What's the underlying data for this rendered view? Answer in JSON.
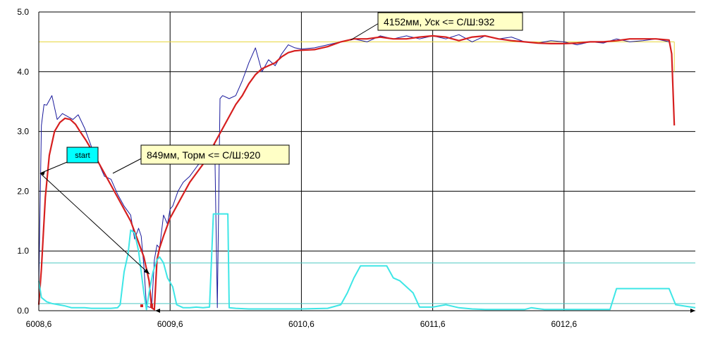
{
  "chart_data": {
    "type": "line",
    "title": "",
    "xlabel": "",
    "ylabel": "",
    "xlim": [
      6008.6,
      6013.6
    ],
    "ylim": [
      0,
      5
    ],
    "x_ticks": [
      6008.6,
      6009.6,
      6010.6,
      6011.6,
      6012.6
    ],
    "x_tick_labels": [
      "6008,6",
      "6009,6",
      "6010,6",
      "6011,6",
      "6012,6"
    ],
    "y_ticks": [
      0,
      1,
      2,
      3,
      4,
      5
    ],
    "y_tick_labels": [
      "0.0",
      "1.0",
      "2.0",
      "3.0",
      "4.0",
      "5.0"
    ],
    "grid": true,
    "reference_lines": [
      {
        "color": "#e6d43a",
        "y": 4.5,
        "x_from": 6008.6,
        "x_to": 6013.44
      },
      {
        "color": "#4cc7c2",
        "y": 0.8
      },
      {
        "color": "#4cc7c2",
        "y": 0.12
      }
    ],
    "series": [
      {
        "color": "#1a1a9c",
        "x": [
          6008.6,
          6008.62,
          6008.64,
          6008.66,
          6008.7,
          6008.74,
          6008.78,
          6008.82,
          6008.86,
          6008.9,
          6008.95,
          6009.0,
          6009.05,
          6009.1,
          6009.15,
          6009.2,
          6009.25,
          6009.3,
          6009.33,
          6009.36,
          6009.38,
          6009.4,
          6009.42,
          6009.44,
          6009.46,
          6009.48,
          6009.5,
          6009.52,
          6009.55,
          6009.58,
          6009.6,
          6009.62,
          6009.66,
          6009.7,
          6009.75,
          6009.8,
          6009.85,
          6009.9,
          6009.94,
          6009.96,
          6009.98,
          6010.0,
          6010.05,
          6010.1,
          6010.15,
          6010.2,
          6010.25,
          6010.3,
          6010.35,
          6010.4,
          6010.45,
          6010.5,
          6010.55,
          6010.6,
          6010.7,
          6010.8,
          6010.9,
          6011.0,
          6011.1,
          6011.2,
          6011.3,
          6011.4,
          6011.5,
          6011.6,
          6011.7,
          6011.8,
          6011.9,
          6012.0,
          6012.1,
          6012.2,
          6012.3,
          6012.4,
          6012.5,
          6012.6,
          6012.7,
          6012.8,
          6012.9,
          6013.0,
          6013.1,
          6013.2,
          6013.3,
          6013.4
        ],
        "values": [
          0.4,
          3.1,
          3.45,
          3.44,
          3.6,
          3.2,
          3.3,
          3.25,
          3.2,
          3.28,
          3.05,
          2.75,
          2.5,
          2.25,
          2.2,
          1.95,
          1.75,
          1.6,
          1.2,
          1.38,
          1.25,
          0.75,
          0.08,
          0.06,
          0.05,
          0.85,
          1.1,
          1.05,
          1.6,
          1.45,
          1.7,
          1.75,
          2.0,
          2.15,
          2.25,
          2.4,
          2.55,
          2.65,
          2.8,
          0.05,
          3.55,
          3.6,
          3.55,
          3.6,
          3.85,
          4.15,
          4.4,
          4.0,
          4.2,
          4.1,
          4.3,
          4.45,
          4.4,
          4.38,
          4.4,
          4.45,
          4.5,
          4.55,
          4.5,
          4.6,
          4.55,
          4.6,
          4.55,
          4.6,
          4.55,
          4.62,
          4.5,
          4.6,
          4.55,
          4.58,
          4.5,
          4.48,
          4.52,
          4.5,
          4.45,
          4.5,
          4.48,
          4.55,
          4.5,
          4.52,
          4.55,
          4.5
        ]
      },
      {
        "color": "#d61f1f",
        "x": [
          6008.6,
          6008.62,
          6008.65,
          6008.68,
          6008.72,
          6008.76,
          6008.8,
          6008.84,
          6008.88,
          6008.92,
          6008.96,
          6009.0,
          6009.05,
          6009.1,
          6009.15,
          6009.2,
          6009.25,
          6009.3,
          6009.35,
          6009.4,
          6009.44,
          6009.46,
          6009.48,
          6009.5,
          6009.52,
          6009.55,
          6009.6,
          6009.65,
          6009.7,
          6009.75,
          6009.8,
          6009.85,
          6009.9,
          6009.95,
          6010.0,
          6010.05,
          6010.1,
          6010.15,
          6010.2,
          6010.25,
          6010.3,
          6010.35,
          6010.4,
          6010.45,
          6010.5,
          6010.55,
          6010.6,
          6010.7,
          6010.8,
          6010.9,
          6011.0,
          6011.1,
          6011.2,
          6011.3,
          6011.4,
          6011.5,
          6011.6,
          6011.7,
          6011.8,
          6011.9,
          6012.0,
          6012.1,
          6012.2,
          6012.3,
          6012.4,
          6012.5,
          6012.6,
          6012.7,
          6012.8,
          6012.9,
          6013.0,
          6013.1,
          6013.2,
          6013.3,
          6013.4,
          6013.42,
          6013.44
        ],
        "values": [
          0.1,
          0.7,
          1.9,
          2.6,
          3.0,
          3.15,
          3.22,
          3.2,
          3.12,
          2.98,
          2.85,
          2.7,
          2.5,
          2.3,
          2.1,
          1.9,
          1.7,
          1.5,
          1.2,
          0.9,
          0.5,
          0.05,
          0.02,
          0.85,
          1.05,
          1.25,
          1.55,
          1.75,
          1.95,
          2.15,
          2.3,
          2.45,
          2.65,
          2.85,
          3.05,
          3.25,
          3.45,
          3.6,
          3.8,
          3.95,
          4.05,
          4.1,
          4.15,
          4.25,
          4.32,
          4.35,
          4.36,
          4.37,
          4.42,
          4.5,
          4.55,
          4.55,
          4.58,
          4.55,
          4.55,
          4.58,
          4.6,
          4.58,
          4.52,
          4.58,
          4.6,
          4.55,
          4.52,
          4.5,
          4.48,
          4.47,
          4.47,
          4.48,
          4.5,
          4.5,
          4.52,
          4.55,
          4.55,
          4.55,
          4.53,
          4.3,
          3.1
        ]
      },
      {
        "color": "#3ee6e6",
        "x": [
          6008.6,
          6008.62,
          6008.66,
          6008.7,
          6008.75,
          6008.8,
          6008.85,
          6008.9,
          6008.95,
          6009.0,
          6009.05,
          6009.1,
          6009.15,
          6009.2,
          6009.22,
          6009.25,
          6009.28,
          6009.3,
          6009.33,
          6009.36,
          6009.4,
          6009.42,
          6009.44,
          6009.47,
          6009.5,
          6009.52,
          6009.55,
          6009.58,
          6009.62,
          6009.65,
          6009.7,
          6009.72,
          6009.75,
          6009.8,
          6009.85,
          6009.9,
          6009.93,
          6009.94,
          6009.95,
          6010.04,
          6010.05,
          6010.1,
          6010.2,
          6010.4,
          6010.6,
          6010.8,
          6010.9,
          6010.95,
          6011.0,
          6011.05,
          6011.1,
          6011.15,
          6011.25,
          6011.3,
          6011.35,
          6011.45,
          6011.5,
          6011.6,
          6011.7,
          6011.8,
          6011.9,
          6012.0,
          6012.1,
          6012.2,
          6012.3,
          6012.35,
          6012.45,
          6012.5,
          6012.6,
          6012.8,
          6012.9,
          6012.95,
          6013.0,
          6013.1,
          6013.2,
          6013.3,
          6013.4,
          6013.45,
          6013.6
        ],
        "values": [
          0.5,
          0.22,
          0.15,
          0.12,
          0.1,
          0.08,
          0.05,
          0.05,
          0.05,
          0.04,
          0.04,
          0.04,
          0.04,
          0.05,
          0.1,
          0.65,
          0.95,
          1.35,
          1.3,
          1.0,
          0.3,
          0.02,
          0.3,
          0.65,
          0.85,
          0.9,
          0.8,
          0.55,
          0.4,
          0.1,
          0.05,
          0.05,
          0.05,
          0.06,
          0.05,
          0.06,
          1.62,
          1.62,
          1.62,
          1.62,
          0.05,
          0.04,
          0.03,
          0.03,
          0.03,
          0.04,
          0.1,
          0.3,
          0.55,
          0.75,
          0.75,
          0.75,
          0.75,
          0.55,
          0.5,
          0.3,
          0.06,
          0.06,
          0.1,
          0.05,
          0.03,
          0.02,
          0.02,
          0.02,
          0.02,
          0.05,
          0.02,
          0.02,
          0.02,
          0.02,
          0.02,
          0.02,
          0.37,
          0.37,
          0.37,
          0.37,
          0.37,
          0.1,
          0.05
        ]
      }
    ],
    "annotations": [
      {
        "text": "849мм, Торм <=  С/Ш:920"
      },
      {
        "text": "4152мм, Уск <=  С/Ш:932"
      },
      {
        "text": "start"
      }
    ]
  }
}
